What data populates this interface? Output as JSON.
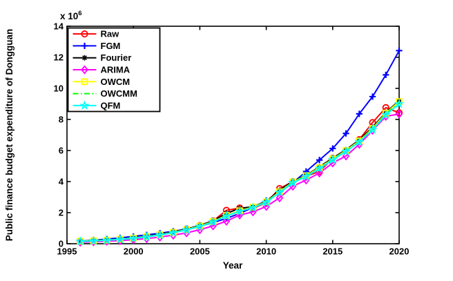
{
  "chart_data": {
    "type": "line",
    "title": "",
    "xlabel": "Year",
    "ylabel": "Public finance budget expenditure of Dongguan",
    "offset_label": {
      "base": "x 10",
      "exponent": "6"
    },
    "xlim": [
      1995,
      2020
    ],
    "ylim": [
      0,
      14
    ],
    "xticks": [
      "1995",
      "2000",
      "2005",
      "2010",
      "2015",
      "2020"
    ],
    "yticks": [
      "0",
      "2",
      "4",
      "6",
      "8",
      "10",
      "12",
      "14"
    ],
    "grid": false,
    "legend_position": "top-left",
    "axis_color": "#000000",
    "background_color": "#ffffff",
    "x": [
      1996,
      1997,
      1998,
      1999,
      2000,
      2001,
      2002,
      2003,
      2004,
      2005,
      2006,
      2007,
      2008,
      2009,
      2010,
      2011,
      2012,
      2013,
      2014,
      2015,
      2016,
      2017,
      2018,
      2019,
      2020
    ],
    "series": [
      {
        "name": "Raw",
        "color": "#ff0000",
        "marker": "circle",
        "line": "solid",
        "values": [
          0.17,
          0.2,
          0.24,
          0.29,
          0.36,
          0.47,
          0.6,
          0.75,
          0.95,
          1.17,
          1.47,
          2.15,
          2.3,
          2.27,
          2.65,
          3.55,
          4.0,
          4.35,
          4.65,
          5.5,
          6.0,
          6.7,
          7.8,
          8.76,
          8.43
        ]
      },
      {
        "name": "FGM",
        "color": "#0000ff",
        "marker": "plus",
        "line": "solid",
        "values": [
          0.15,
          0.22,
          0.3,
          0.38,
          0.47,
          0.57,
          0.68,
          0.8,
          0.95,
          1.13,
          1.36,
          1.63,
          1.95,
          2.33,
          2.78,
          3.3,
          3.92,
          4.65,
          5.39,
          6.13,
          7.1,
          8.36,
          9.47,
          10.87,
          12.43
        ]
      },
      {
        "name": "Fourier",
        "color": "#000000",
        "marker": "asterisk",
        "line": "solid",
        "values": [
          0.17,
          0.21,
          0.25,
          0.3,
          0.37,
          0.48,
          0.61,
          0.76,
          0.94,
          1.18,
          1.48,
          1.95,
          2.28,
          2.38,
          2.72,
          3.45,
          4.02,
          4.4,
          4.95,
          5.52,
          6.05,
          6.68,
          7.5,
          8.45,
          9.2
        ]
      },
      {
        "name": "ARIMA",
        "color": "#ff00ff",
        "marker": "diamond",
        "line": "solid",
        "values": [
          0.1,
          0.13,
          0.16,
          0.2,
          0.26,
          0.33,
          0.43,
          0.55,
          0.7,
          0.9,
          1.15,
          1.45,
          1.85,
          2.05,
          2.4,
          2.95,
          3.7,
          4.1,
          4.55,
          5.2,
          5.65,
          6.4,
          7.3,
          8.2,
          8.35
        ]
      },
      {
        "name": "OWCM",
        "color": "#ffff00",
        "marker": "square",
        "line": "solid",
        "values": [
          0.16,
          0.19,
          0.23,
          0.29,
          0.36,
          0.46,
          0.58,
          0.73,
          0.91,
          1.14,
          1.43,
          1.82,
          2.12,
          2.36,
          2.7,
          3.35,
          3.98,
          4.38,
          4.9,
          5.46,
          6.0,
          6.62,
          7.42,
          8.4,
          9.15
        ]
      },
      {
        "name": "OWCMM",
        "color": "#00ff00",
        "marker": "none",
        "line": "dashdot",
        "values": [
          0.16,
          0.19,
          0.23,
          0.28,
          0.35,
          0.45,
          0.57,
          0.72,
          0.9,
          1.12,
          1.41,
          1.8,
          2.1,
          2.34,
          2.68,
          3.32,
          3.96,
          4.35,
          4.87,
          5.43,
          5.97,
          6.58,
          7.38,
          8.35,
          9.1
        ]
      },
      {
        "name": "QFM",
        "color": "#00ffff",
        "marker": "pentagram",
        "line": "solid",
        "values": [
          0.15,
          0.18,
          0.22,
          0.28,
          0.34,
          0.44,
          0.56,
          0.71,
          0.89,
          1.11,
          1.4,
          1.78,
          2.08,
          2.32,
          2.66,
          3.3,
          3.93,
          4.32,
          4.84,
          5.4,
          5.94,
          6.55,
          7.34,
          8.3,
          9.0
        ]
      }
    ]
  }
}
